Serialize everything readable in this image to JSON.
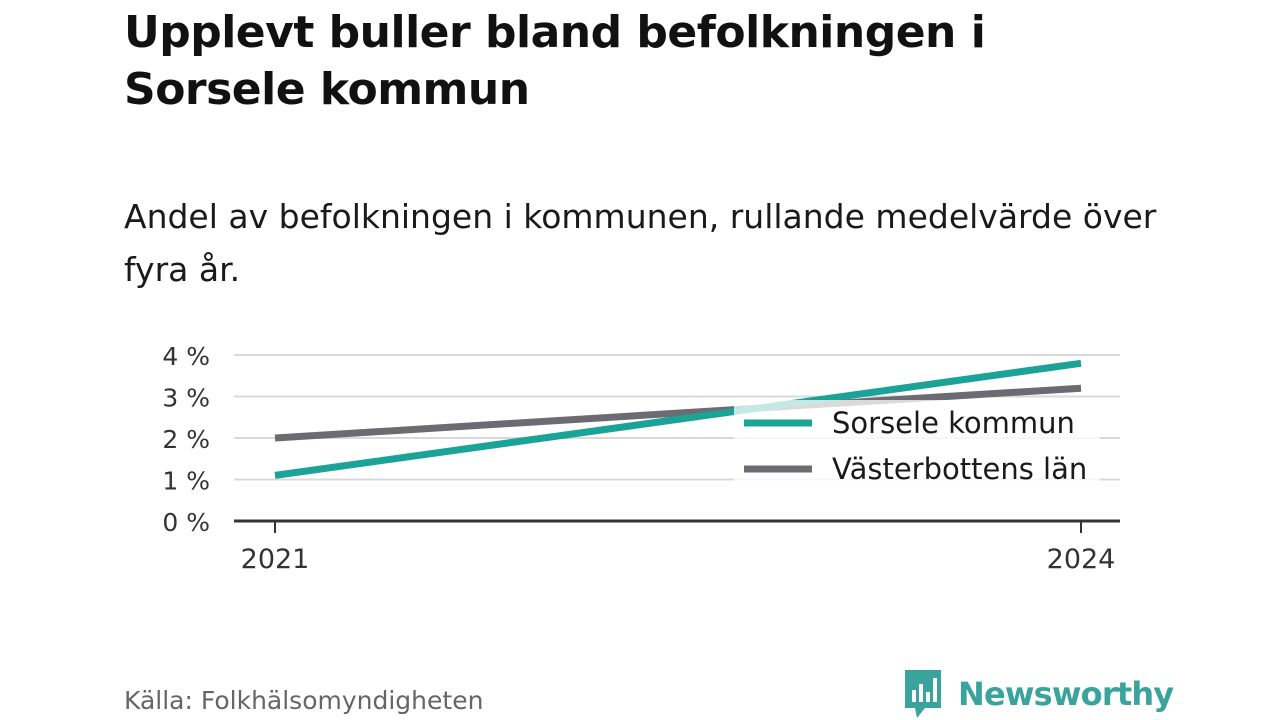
{
  "header": {
    "title": "Upplevt buller bland befolkningen i Sorsele kommun",
    "subtitle": "Andel av befolkningen i kommunen, rullande medelvärde över fyra år."
  },
  "footer": {
    "source": "Källa: Folkhälsomyndigheten",
    "brand": "Newsworthy",
    "brand_icon": "bar-chart-speech-bubble-icon"
  },
  "colors": {
    "accent": "#1aa396",
    "secondary": "#6d6b72",
    "grid": "#d9d9d9",
    "axis": "#333333",
    "brand": "#3aa39b"
  },
  "chart_data": {
    "type": "line",
    "title": "Upplevt buller bland befolkningen i Sorsele kommun",
    "subtitle": "Andel av befolkningen i kommunen, rullande medelvärde över fyra år.",
    "x": [
      "2021",
      "2024"
    ],
    "x_ticks": [
      "2021",
      "2024"
    ],
    "y_ticks": [
      "0 %",
      "1 %",
      "2 %",
      "3 %",
      "4 %"
    ],
    "ylim": [
      0,
      4
    ],
    "grid": true,
    "legend_placement": "right",
    "series": [
      {
        "name": "Sorsele kommun",
        "values": [
          1.1,
          3.8
        ],
        "color": "#1aa396"
      },
      {
        "name": "Västerbottens län",
        "values": [
          2.0,
          3.2
        ],
        "color": "#6d6b72"
      }
    ]
  }
}
